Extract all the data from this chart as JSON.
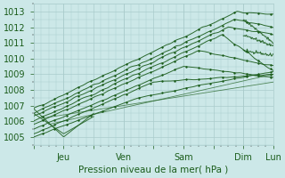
{
  "background_color": "#cce8e8",
  "grid_color": "#aacccc",
  "line_color": "#1a5c1a",
  "ylabel": "Pression niveau de la mer( hPa )",
  "ylim": [
    1004.5,
    1013.5
  ],
  "yticks": [
    1005,
    1006,
    1007,
    1008,
    1009,
    1010,
    1011,
    1012,
    1013
  ],
  "xtick_labels": [
    "",
    "Jeu",
    "",
    "Ven",
    "",
    "Sam",
    "",
    "Dim",
    "Lun"
  ],
  "xtick_positions": [
    0,
    1,
    2,
    3,
    4,
    5,
    6,
    7,
    8
  ],
  "xlim": [
    0,
    8
  ],
  "num_lines": 8,
  "figsize": [
    3.2,
    2.0
  ],
  "dpi": 100
}
